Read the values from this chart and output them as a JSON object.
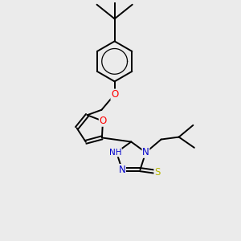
{
  "bg_color": "#ebebeb",
  "bond_color": "#000000",
  "bond_width": 1.4,
  "atom_colors": {
    "O": "#ff0000",
    "N": "#0000cc",
    "S": "#b8b800",
    "C": "#000000"
  },
  "figsize": [
    3.0,
    3.0
  ],
  "dpi": 100
}
